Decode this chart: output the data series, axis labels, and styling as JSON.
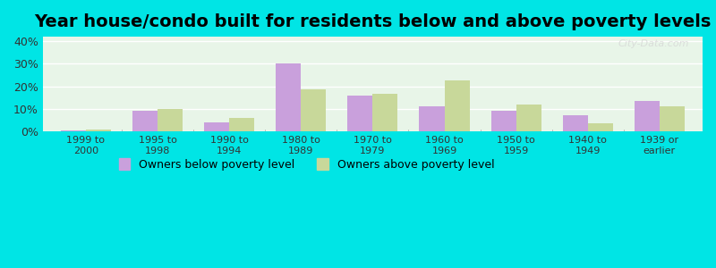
{
  "title": "Year house/condo built for residents below and above poverty levels",
  "categories": [
    "1999 to\n2000",
    "1995 to\n1998",
    "1990 to\n1994",
    "1980 to\n1989",
    "1970 to\n1979",
    "1960 to\n1969",
    "1950 to\n1959",
    "1940 to\n1949",
    "1939 or\nearlier"
  ],
  "below_poverty": [
    0.5,
    9.0,
    4.0,
    30.0,
    16.0,
    11.0,
    9.0,
    7.0,
    13.5
  ],
  "above_poverty": [
    1.0,
    10.0,
    6.0,
    18.5,
    16.5,
    22.5,
    12.0,
    3.5,
    11.0
  ],
  "below_color": "#c9a0dc",
  "above_color": "#c8d89a",
  "ylim": [
    0,
    42
  ],
  "yticks": [
    0,
    10,
    20,
    30,
    40
  ],
  "ytick_labels": [
    "0%",
    "10%",
    "20%",
    "30%",
    "40%"
  ],
  "legend_below": "Owners below poverty level",
  "legend_above": "Owners above poverty level",
  "plot_bg": "#e8f5e8",
  "outer_bg": "#00e5e5",
  "title_fontsize": 14,
  "bar_width": 0.35,
  "watermark": "City-Data.com"
}
